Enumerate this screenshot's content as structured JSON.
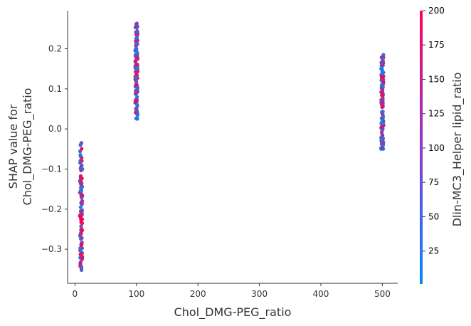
{
  "chart_data": {
    "type": "scatter",
    "xlabel": "Chol_DMG-PEG_ratio",
    "ylabel_lines": [
      "SHAP value for",
      "Chol_DMG-PEG_ratio"
    ],
    "color_label": "Dlin-MC3_Helper lipid_ratio",
    "xlim": [
      -12,
      525
    ],
    "ylim": [
      -0.385,
      0.295
    ],
    "xticks": [
      0,
      100,
      200,
      300,
      400,
      500
    ],
    "xtick_labels": [
      "0",
      "100",
      "200",
      "300",
      "400",
      "500"
    ],
    "yticks": [
      -0.3,
      -0.2,
      -0.1,
      0.0,
      0.1,
      0.2
    ],
    "ytick_labels": [
      "−0.3",
      "−0.2",
      "−0.1",
      "0.0",
      "0.1",
      "0.2"
    ],
    "color_range": [
      1,
      200
    ],
    "color_ticks": [
      25,
      50,
      75,
      100,
      125,
      150,
      175,
      200
    ],
    "color_tick_labels": [
      "25",
      "50",
      "75",
      "100",
      "125",
      "150",
      "175",
      "200"
    ],
    "colormap": [
      "#008afb",
      "#ff0052"
    ],
    "point_groups": [
      {
        "x": 10,
        "y_range": [
          -0.352,
          -0.035
        ]
      },
      {
        "x": 100,
        "y_range": [
          0.025,
          0.263
        ]
      },
      {
        "x": 500,
        "y_range": [
          -0.05,
          0.185
        ]
      }
    ]
  }
}
